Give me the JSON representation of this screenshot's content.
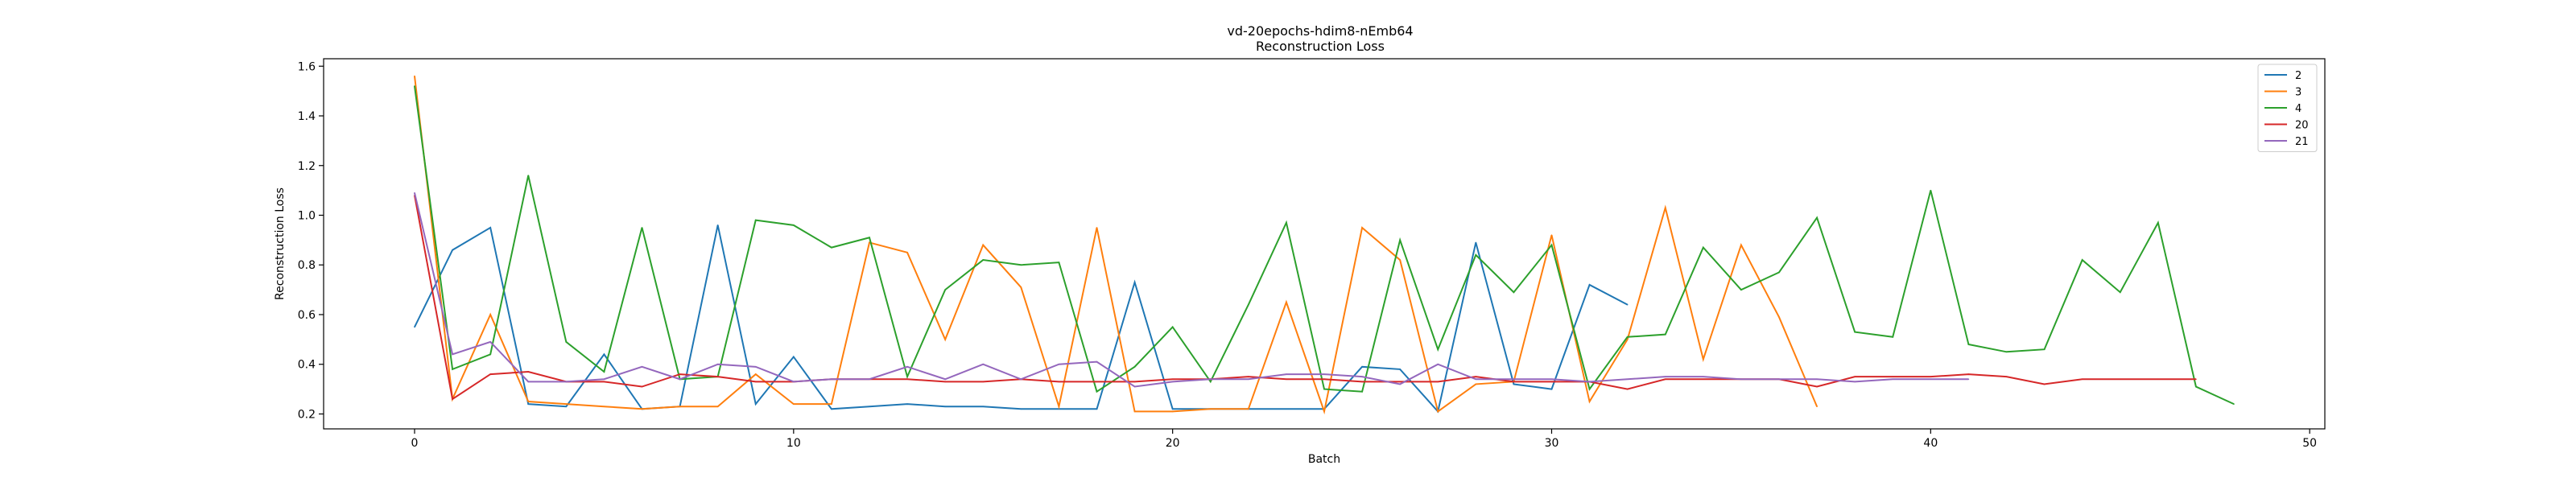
{
  "chart_data": {
    "type": "line",
    "title": "vd-20epochs-hdim8-nEmb64",
    "subtitle": "Reconstruction Loss",
    "xlabel": "Batch",
    "ylabel": "Reconstruction Loss",
    "xlim": [
      -2.4,
      50.4
    ],
    "ylim": [
      0.14,
      1.63
    ],
    "xticks": [
      0,
      10,
      20,
      30,
      40,
      50
    ],
    "yticks": [
      0.2,
      0.4,
      0.6,
      0.8,
      1.0,
      1.2,
      1.4,
      1.6
    ],
    "xtick_labels": [
      "0",
      "10",
      "20",
      "30",
      "40",
      "50"
    ],
    "ytick_labels": [
      "0.2",
      "0.4",
      "0.6",
      "0.8",
      "1.0",
      "1.2",
      "1.4",
      "1.6"
    ],
    "grid": false,
    "legend_position": "top-right",
    "series": [
      {
        "name": "2",
        "color": "#1f77b4",
        "values": [
          0.55,
          0.86,
          0.95,
          0.24,
          0.23,
          0.44,
          0.22,
          0.23,
          0.96,
          0.24,
          0.43,
          0.22,
          0.23,
          0.24,
          0.23,
          0.23,
          0.22,
          0.22,
          0.22,
          0.73,
          0.22,
          0.22,
          0.22,
          0.22,
          0.22,
          0.39,
          0.38,
          0.21,
          0.89,
          0.32,
          0.3,
          0.72,
          0.64
        ]
      },
      {
        "name": "3",
        "color": "#ff7f0e",
        "values": [
          1.56,
          0.26,
          0.6,
          0.25,
          0.24,
          0.23,
          0.22,
          0.23,
          0.23,
          0.36,
          0.24,
          0.24,
          0.89,
          0.85,
          0.5,
          0.88,
          0.71,
          0.23,
          0.95,
          0.21,
          0.21,
          0.22,
          0.22,
          0.65,
          0.21,
          0.95,
          0.82,
          0.21,
          0.32,
          0.33,
          0.92,
          0.25,
          0.5,
          1.03,
          0.42,
          0.88,
          0.59,
          0.23
        ]
      },
      {
        "name": "4",
        "color": "#2ca02c",
        "values": [
          1.52,
          0.38,
          0.44,
          1.16,
          0.49,
          0.37,
          0.95,
          0.34,
          0.35,
          0.98,
          0.96,
          0.87,
          0.91,
          0.35,
          0.7,
          0.82,
          0.8,
          0.81,
          0.29,
          0.39,
          0.55,
          0.33,
          0.64,
          0.97,
          0.3,
          0.29,
          0.9,
          0.46,
          0.84,
          0.69,
          0.88,
          0.3,
          0.51,
          0.52,
          0.87,
          0.7,
          0.77,
          0.99,
          0.53,
          0.51,
          1.1,
          0.48,
          0.45,
          0.46,
          0.82,
          0.69,
          0.97,
          0.31,
          0.24
        ]
      },
      {
        "name": "20",
        "color": "#d62728",
        "values": [
          1.08,
          0.26,
          0.36,
          0.37,
          0.33,
          0.33,
          0.31,
          0.36,
          0.35,
          0.33,
          0.33,
          0.34,
          0.34,
          0.34,
          0.33,
          0.33,
          0.34,
          0.33,
          0.33,
          0.33,
          0.34,
          0.34,
          0.35,
          0.34,
          0.34,
          0.33,
          0.33,
          0.33,
          0.35,
          0.33,
          0.33,
          0.33,
          0.3,
          0.34,
          0.34,
          0.34,
          0.34,
          0.31,
          0.35,
          0.35,
          0.35,
          0.36,
          0.35,
          0.32,
          0.34,
          0.34,
          0.34,
          0.34
        ]
      },
      {
        "name": "21",
        "color": "#9467bd",
        "values": [
          1.09,
          0.44,
          0.49,
          0.33,
          0.33,
          0.34,
          0.39,
          0.34,
          0.4,
          0.39,
          0.33,
          0.34,
          0.34,
          0.39,
          0.34,
          0.4,
          0.34,
          0.4,
          0.41,
          0.31,
          0.33,
          0.34,
          0.34,
          0.36,
          0.36,
          0.35,
          0.32,
          0.4,
          0.34,
          0.34,
          0.34,
          0.33,
          0.34,
          0.35,
          0.35,
          0.34,
          0.34,
          0.34,
          0.33,
          0.34,
          0.34,
          0.34
        ]
      }
    ]
  }
}
